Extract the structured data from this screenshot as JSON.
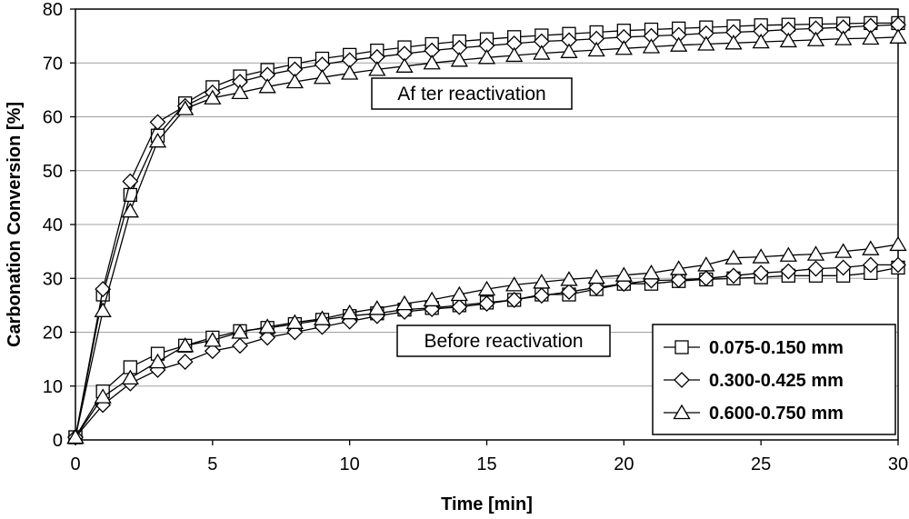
{
  "chart_data": {
    "type": "line",
    "xlabel": "Time [min]",
    "ylabel": "Carbonation Conversion [%]",
    "xlim": [
      0,
      30
    ],
    "ylim": [
      0,
      80
    ],
    "xticks": [
      "0",
      "5",
      "10",
      "15",
      "20",
      "25",
      "30"
    ],
    "yticks": [
      "0",
      "10",
      "20",
      "30",
      "40",
      "50",
      "60",
      "70",
      "80"
    ],
    "grid": "horizontal",
    "legend_position": "bottom-right",
    "annotations": {
      "after": "Af ter reactivation",
      "before": "Before reactivation"
    },
    "x": [
      0,
      1,
      2,
      3,
      4,
      5,
      6,
      7,
      8,
      9,
      10,
      11,
      12,
      13,
      14,
      15,
      16,
      17,
      18,
      19,
      20,
      21,
      22,
      23,
      24,
      25,
      26,
      27,
      28,
      29,
      30
    ],
    "series": [
      {
        "name": "0.075-0.150 mm",
        "marker": "square",
        "group": "after",
        "values": [
          0.5,
          27,
          45.5,
          56.5,
          62.5,
          65.5,
          67.5,
          68.7,
          69.8,
          70.8,
          71.5,
          72.3,
          72.9,
          73.5,
          74.0,
          74.4,
          74.8,
          75.1,
          75.4,
          75.7,
          76.0,
          76.2,
          76.4,
          76.6,
          76.8,
          77.0,
          77.1,
          77.2,
          77.3,
          77.4,
          77.4
        ]
      },
      {
        "name": "0.300-0.425 mm",
        "marker": "diamond",
        "group": "after",
        "values": [
          0.5,
          28,
          48,
          59,
          62,
          64.5,
          66.5,
          67.8,
          68.8,
          69.7,
          70.5,
          71.1,
          71.7,
          72.3,
          72.8,
          73.2,
          73.6,
          74.0,
          74.2,
          74.5,
          74.8,
          75.0,
          75.2,
          75.5,
          75.7,
          75.9,
          76.2,
          76.4,
          76.6,
          76.9,
          77.1
        ]
      },
      {
        "name": "0.600-0.750 mm",
        "marker": "triangle",
        "group": "after",
        "values": [
          0.5,
          24,
          42.5,
          55.5,
          61.5,
          63.5,
          64.5,
          65.6,
          66.5,
          67.3,
          68.1,
          68.8,
          69.4,
          70.0,
          70.5,
          71.0,
          71.4,
          71.8,
          72.1,
          72.4,
          72.7,
          73.0,
          73.3,
          73.5,
          73.7,
          73.9,
          74.1,
          74.3,
          74.5,
          74.6,
          74.8
        ]
      },
      {
        "name": "0.075-0.150 mm",
        "marker": "square",
        "group": "before",
        "values": [
          0.5,
          9,
          13.5,
          16,
          17.5,
          19,
          20.2,
          20.8,
          21.5,
          22.3,
          23.0,
          23.5,
          24.2,
          24.5,
          25.0,
          25.5,
          26.0,
          27.0,
          27.0,
          28.0,
          29.0,
          29.0,
          29.5,
          29.8,
          30.0,
          30.2,
          30.5,
          30.5,
          30.5,
          31.0,
          32.0
        ]
      },
      {
        "name": "0.300-0.425 mm",
        "marker": "diamond",
        "group": "before",
        "values": [
          0.5,
          6.5,
          10.5,
          13,
          14.5,
          16.5,
          17.5,
          19,
          20,
          21,
          22,
          23,
          23.8,
          24.3,
          24.7,
          25.3,
          26.0,
          26.8,
          27.5,
          28.3,
          29.0,
          29.6,
          29.7,
          30.0,
          30.5,
          31.0,
          31.3,
          31.8,
          32.0,
          32.5,
          32.5
        ]
      },
      {
        "name": "0.600-0.750 mm",
        "marker": "triangle",
        "group": "before",
        "values": [
          0.5,
          8,
          11.5,
          14.5,
          17.5,
          18.5,
          20,
          21,
          21.8,
          22.5,
          23.6,
          24.4,
          25.3,
          26.0,
          27.0,
          28.0,
          28.8,
          29.3,
          29.8,
          30.2,
          30.6,
          31.0,
          31.8,
          32.5,
          33.8,
          34.0,
          34.3,
          34.5,
          35.0,
          35.5,
          36.3
        ]
      }
    ]
  }
}
